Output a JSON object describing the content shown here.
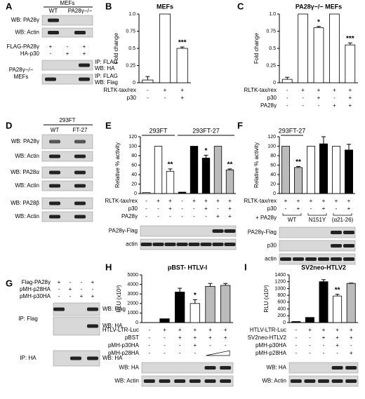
{
  "panel_a": {
    "label": "A",
    "group": "MEFs",
    "lanes": [
      "WT",
      "PA28γ−/−"
    ],
    "rows": [
      "WB: PA28γ",
      "WB: Actin"
    ],
    "treatments": [
      {
        "name": "FLAG-PA28γ",
        "marks": [
          "+",
          "-",
          "+"
        ]
      },
      {
        "name": "HA-p30",
        "marks": [
          "-",
          "+",
          "+"
        ]
      }
    ],
    "cell": [
      "PA28γ−/−",
      "MEFs"
    ],
    "ip_rows": [
      [
        "IP: FLAG",
        "WB: HA"
      ],
      [
        "IP: FLAG",
        "WB: Flag"
      ]
    ]
  },
  "panel_d": {
    "label": "D",
    "group": "293FT",
    "lanes": [
      "WT",
      "FT-27"
    ],
    "rows": [
      "WB: PA28γ",
      "WB: Actin",
      "WB: PA28α",
      "WB: Actin",
      "WB: PA28β",
      "WB: Actin"
    ]
  },
  "panel_g": {
    "label": "G",
    "treatments": [
      {
        "name": "Flag-PA28γ",
        "marks": [
          "+",
          "-",
          "-",
          "+"
        ]
      },
      {
        "name": "pMH-p28HA",
        "marks": [
          "-",
          "+",
          "-",
          "-"
        ]
      },
      {
        "name": "pMH-p30HA",
        "marks": [
          "-",
          "-",
          "+",
          "+"
        ]
      }
    ],
    "sections": [
      {
        "name": "IP: Flag",
        "rows": [
          "WB: Flag",
          "WB: HA"
        ]
      },
      {
        "name": "IP: HA",
        "rows": [
          "WB: HA"
        ]
      }
    ]
  },
  "chart_data": [
    {
      "type": "bar",
      "label": "B",
      "title": "MEFs",
      "ylabel": "Fold change",
      "ylim": [
        0,
        1
      ],
      "yticks": [
        0,
        0.25,
        0.5,
        0.75,
        {
          "value": 1,
          "label": "1.0"
        }
      ],
      "values": [
        0.04,
        1.0,
        0.5
      ],
      "errors": [
        0.05,
        0,
        0.02
      ],
      "colors": [
        "#ffffff",
        "#ffffff",
        "#ffffff"
      ],
      "annotations": [
        null,
        null,
        "***"
      ],
      "conditions": [
        {
          "name": "RLTK-tax/rex",
          "marks": [
            "-",
            "+",
            "+"
          ]
        },
        {
          "name": "p30",
          "marks": [
            "-",
            "-",
            "+"
          ]
        }
      ]
    },
    {
      "type": "bar",
      "label": "C",
      "title": "PA28γ−/− MEFs",
      "ylabel": "Fold change",
      "ylim": [
        0,
        1
      ],
      "yticks": [
        0,
        0.25,
        0.5,
        0.75,
        {
          "value": 1,
          "label": "1.0"
        }
      ],
      "values": [
        0.05,
        1.0,
        0.8,
        1.0,
        0.55
      ],
      "errors": [
        0.03,
        0,
        0.02,
        0,
        0.03
      ],
      "colors": [
        "#ffffff",
        "#ffffff",
        "#ffffff",
        "#ffffff",
        "#ffffff"
      ],
      "annotations": [
        null,
        null,
        "*",
        null,
        "***"
      ],
      "conditions": [
        {
          "name": "RLTK-tax/rex",
          "marks": [
            "-",
            "+",
            "+",
            "+",
            "+"
          ]
        },
        {
          "name": "p30",
          "marks": [
            "-",
            "-",
            "+",
            "-",
            "+"
          ]
        },
        {
          "name": "PA28γ",
          "marks": [
            "-",
            "-",
            "-",
            "+",
            "+"
          ]
        }
      ]
    },
    {
      "type": "bar",
      "label": "E",
      "ylabel": "Relative % activity",
      "ylim": [
        0,
        120
      ],
      "yticks": [
        0,
        20,
        40,
        60,
        80,
        100,
        120
      ],
      "groups": [
        "293FT",
        "293FT-27"
      ],
      "values": [
        2,
        100,
        47,
        3,
        100,
        75,
        100,
        50
      ],
      "errors": [
        0,
        0,
        5,
        0,
        0,
        6,
        0,
        2
      ],
      "colors": [
        "#ffffff",
        "#ffffff",
        "#ffffff",
        "#000000",
        "#000000",
        "#000000",
        "#bbbbbb",
        "#bbbbbb"
      ],
      "annotations": [
        null,
        null,
        "**",
        null,
        null,
        "*",
        null,
        "**"
      ],
      "conditions": [
        {
          "name": "RLTK-tax/rex",
          "marks": [
            "-",
            "+",
            "+",
            "-",
            "+",
            "+",
            "+",
            "+"
          ]
        },
        {
          "name": "p30",
          "marks": [
            "-",
            "-",
            "+",
            "-",
            "-",
            "+",
            "-",
            "+"
          ]
        },
        {
          "name": "PA28γ",
          "marks": [
            "-",
            "-",
            "-",
            "-",
            "-",
            "-",
            "+",
            "+"
          ]
        }
      ],
      "blots": [
        "PA28γ-Flag",
        "actin"
      ]
    },
    {
      "type": "bar",
      "label": "F",
      "ylabel": "Relative % activity",
      "ylim": [
        0,
        120
      ],
      "yticks": [
        0,
        20,
        40,
        60,
        80,
        100,
        120
      ],
      "groups": [
        "293FT-27"
      ],
      "values": [
        100,
        55,
        100,
        105,
        100,
        92
      ],
      "errors": [
        0,
        2,
        0,
        15,
        0,
        12
      ],
      "colors": [
        "#bbbbbb",
        "#bbbbbb",
        "#ffffff",
        "#000000",
        "#ffffff",
        "#000000"
      ],
      "annotations": [
        null,
        "**",
        null,
        null,
        null,
        null
      ],
      "conditions": [
        {
          "name": "RLTK-tax/rex",
          "marks": [
            "+",
            "+",
            "+",
            "+",
            "+",
            "+"
          ]
        },
        {
          "name": "p30",
          "marks": [
            "-",
            "+",
            "-",
            "+",
            "-",
            "+"
          ]
        }
      ],
      "group_row": {
        "name": "+ PA28γ",
        "labels": [
          "WT",
          "N151Y",
          "(α21-26)"
        ]
      },
      "blots": [
        "PA28γ-Flag",
        "p30",
        "actin"
      ]
    },
    {
      "type": "bar",
      "label": "H",
      "title": "pBST- HTLV-I",
      "ylabel": "RLU (x10³)",
      "ylim": [
        0,
        5000
      ],
      "yticks": [
        0,
        1000,
        2000,
        3000,
        4000,
        5000
      ],
      "values": [
        0,
        400,
        3200,
        2000,
        3800,
        3900
      ],
      "errors": [
        0,
        0,
        400,
        400,
        300,
        200
      ],
      "colors": [
        "#000000",
        "#000000",
        "#000000",
        "#ffffff",
        "#bbbbbb",
        "#bbbbbb"
      ],
      "annotations": [
        null,
        null,
        null,
        "*",
        null,
        null
      ],
      "conditions": [
        {
          "name": "HTLV-LTR-Luc",
          "marks": [
            "-",
            "+",
            "+",
            "+",
            "+",
            "+"
          ]
        },
        {
          "name": "pBST",
          "marks": [
            "-",
            "-",
            "+",
            "+",
            "+",
            "+"
          ]
        },
        {
          "name": "pMH-p30HA",
          "marks": [
            "-",
            "-",
            "-",
            "+",
            "-",
            "-"
          ]
        },
        {
          "name": "pMH-p28HA",
          "marks": [
            "-",
            "-",
            "-",
            "-",
            null,
            null
          ]
        }
      ],
      "blots": [
        "WB: HA",
        "WB: Actin"
      ]
    },
    {
      "type": "bar",
      "label": "I",
      "title": "SV2neo-HTLV2",
      "ylabel": "RLU (x10³)",
      "ylim": [
        0,
        1400
      ],
      "yticks": [
        0,
        200,
        400,
        600,
        800,
        1000,
        1200,
        1400
      ],
      "values": [
        30,
        150,
        1200,
        780,
        1150
      ],
      "errors": [
        0,
        0,
        60,
        50,
        10
      ],
      "colors": [
        "#000000",
        "#000000",
        "#000000",
        "#ffffff",
        "#bbbbbb"
      ],
      "annotations": [
        null,
        null,
        null,
        "**",
        null
      ],
      "conditions": [
        {
          "name": "HTLV-LTR-Luc",
          "marks": [
            "-",
            "+",
            "+",
            "+",
            "+"
          ]
        },
        {
          "name": "SV2neo-HTLV2",
          "marks": [
            "-",
            "-",
            "+",
            "+",
            "+"
          ]
        },
        {
          "name": "pMH-p30HA",
          "marks": [
            "-",
            "-",
            "-",
            "+",
            "-"
          ]
        },
        {
          "name": "pMH-p28HA",
          "marks": [
            "-",
            "-",
            "-",
            "-",
            "+"
          ]
        }
      ],
      "blots": [
        "WB: HA",
        "WB: Actin"
      ]
    }
  ]
}
